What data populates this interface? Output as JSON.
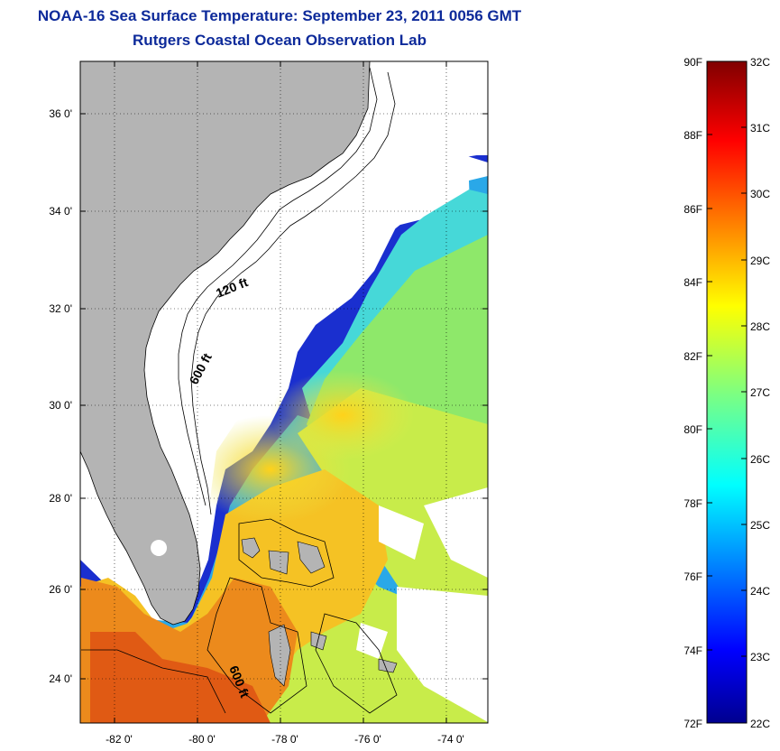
{
  "title": "NOAA-16 Sea Surface Temperature:  September 23, 2011 0056 GMT",
  "subtitle": "Rutgers Coastal Ocean Observation Lab",
  "map": {
    "lat_ticks": [
      "36 0'",
      "34 0'",
      "32 0'",
      "30 0'",
      "28 0'",
      "26 0'",
      "24 0'"
    ],
    "lon_ticks": [
      "-82 0'",
      "-80 0'",
      "-78 0'",
      "-76 0'",
      "-74 0'"
    ],
    "contour_labels": [
      "120 ft",
      "600 ft",
      "600 ft"
    ],
    "land_color": "#b4b4b4",
    "no_data_color": "#ffffff"
  },
  "colorbar": {
    "fahrenheit_labels": [
      "90F",
      "88F",
      "86F",
      "84F",
      "82F",
      "80F",
      "78F",
      "76F",
      "74F",
      "72F"
    ],
    "celsius_labels": [
      "32C",
      "31C",
      "30C",
      "29C",
      "28C",
      "27C",
      "26C",
      "25C",
      "24C",
      "23C",
      "22C"
    ],
    "min_c": 22,
    "max_c": 32,
    "colormap": "jet"
  }
}
